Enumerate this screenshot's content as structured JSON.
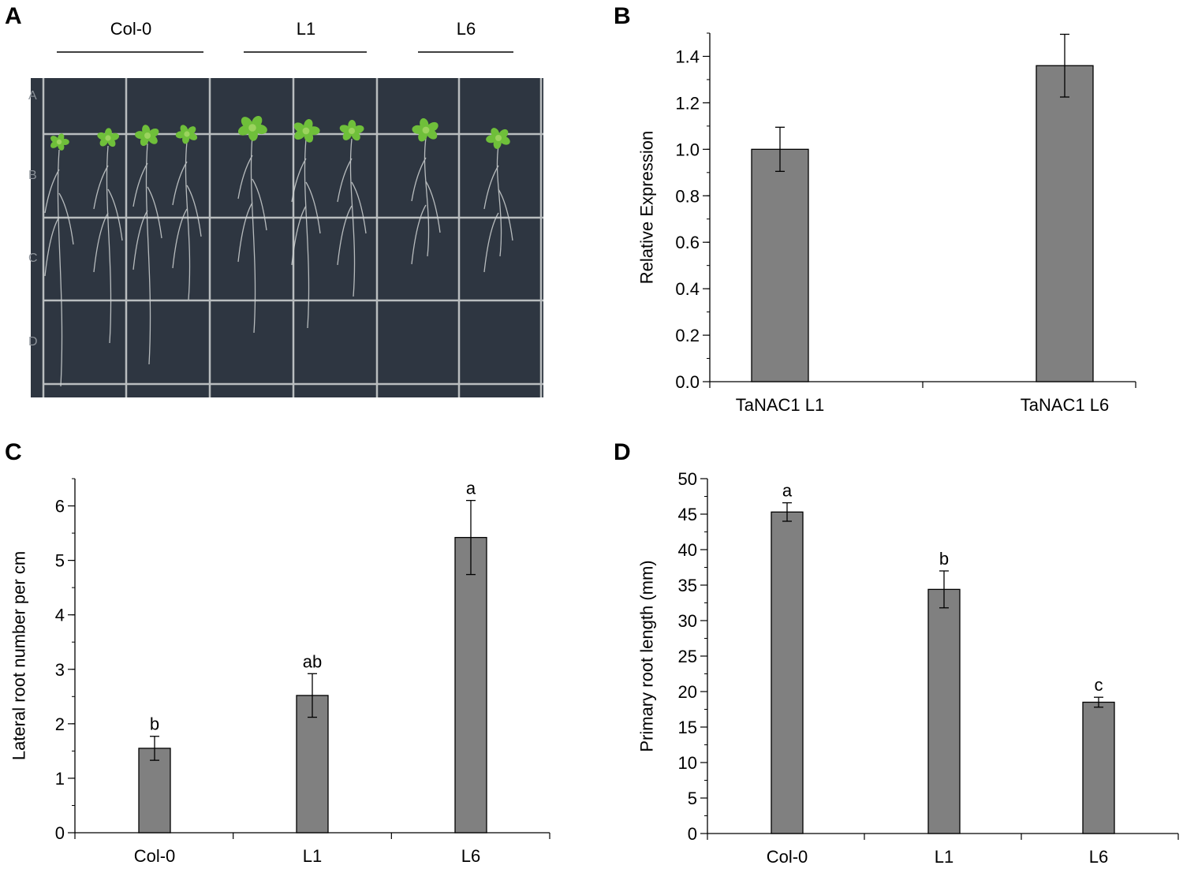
{
  "panel_letters": [
    "A",
    "B",
    "C",
    "D"
  ],
  "photo": {
    "group_labels": [
      "Col-0",
      "L1",
      "L6"
    ],
    "grid_row_marks": [
      "A",
      "B",
      "C",
      "D"
    ],
    "colors": {
      "background": "#2e3641",
      "grid": "#b9bdbf",
      "leaf": "#6fbf3a",
      "root": "#cfd3d3"
    }
  },
  "bar_color": "#808080",
  "chart_data": [
    {
      "panel": "B",
      "type": "bar",
      "categories": [
        "TaNAC1 L1",
        "TaNAC1 L6"
      ],
      "values": [
        1.0,
        1.36
      ],
      "errors": [
        0.095,
        0.135
      ],
      "letters": [
        "",
        ""
      ],
      "ylabel": "Relative Expression",
      "xlabel": "",
      "ylim": [
        0,
        1.5
      ],
      "yticks": [
        0,
        0.2,
        0.4,
        0.6,
        0.8,
        1.0,
        1.2,
        1.4
      ],
      "ytick_labels": [
        "0.0",
        "0.2",
        "0.4",
        "0.6",
        "0.8",
        "1.0",
        "1.2",
        "1.4"
      ],
      "minor_step": 0.1
    },
    {
      "panel": "C",
      "type": "bar",
      "categories": [
        "Col-0",
        "L1",
        "L6"
      ],
      "values": [
        1.55,
        2.52,
        5.42
      ],
      "errors": [
        0.22,
        0.4,
        0.68
      ],
      "letters": [
        "b",
        "ab",
        "a"
      ],
      "ylabel": "Lateral root number per cm",
      "xlabel": "",
      "ylim": [
        0,
        6.5
      ],
      "yticks": [
        0,
        1,
        2,
        3,
        4,
        5,
        6
      ],
      "ytick_labels": [
        "0",
        "1",
        "2",
        "3",
        "4",
        "5",
        "6"
      ],
      "minor_step": 0.5
    },
    {
      "panel": "D",
      "type": "bar",
      "categories": [
        "Col-0",
        "L1",
        "L6"
      ],
      "values": [
        45.3,
        34.4,
        18.5
      ],
      "errors": [
        1.3,
        2.6,
        0.7
      ],
      "letters": [
        "a",
        "b",
        "c"
      ],
      "ylabel": "Primary root length (mm)",
      "xlabel": "",
      "ylim": [
        0,
        50
      ],
      "yticks": [
        0,
        5,
        10,
        15,
        20,
        25,
        30,
        35,
        40,
        45,
        50
      ],
      "ytick_labels": [
        "0",
        "5",
        "10",
        "15",
        "20",
        "25",
        "30",
        "35",
        "40",
        "45",
        "50"
      ],
      "minor_step": 2.5
    }
  ]
}
